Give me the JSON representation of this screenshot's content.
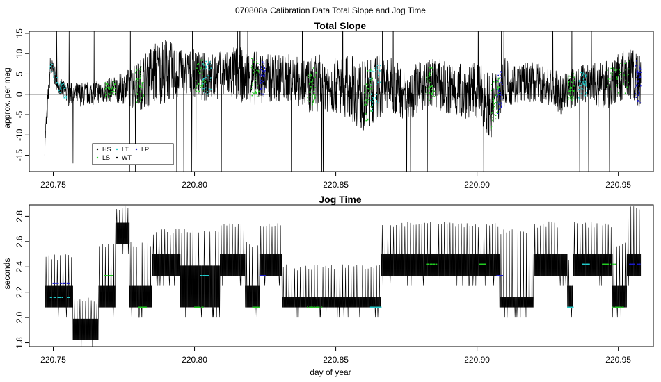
{
  "figure": {
    "suptitle": "070808a   Calibration Data Total Slope and Jog Time",
    "xlabel": "day of year"
  },
  "colors": {
    "HS": "#000000",
    "LS": "#22cc22",
    "LT": "#22cccc",
    "WT": "#000000",
    "LP": "#1a1acc",
    "trace": "#000000"
  },
  "chart_data": [
    {
      "type": "line",
      "title": "Total Slope",
      "ylabel": "approx. per meg",
      "xlim": [
        220.7415,
        220.9624
      ],
      "ylim": [
        -19,
        15.5
      ],
      "xticks": [
        "220.75",
        "220.80",
        "220.85",
        "220.90",
        "220.95"
      ],
      "xtick_values": [
        220.75,
        220.8,
        220.85,
        220.9,
        220.95
      ],
      "yticks": [
        "-15",
        "-10",
        "-5",
        "0",
        "5",
        "10",
        "15"
      ],
      "ytick_values": [
        -15,
        -10,
        -5,
        0,
        5,
        10,
        15
      ],
      "hline": 0,
      "x_range": [
        220.747,
        220.958
      ],
      "envelope": {
        "x": [
          220.747,
          220.749,
          220.752,
          220.755,
          220.76,
          220.765,
          220.77,
          220.775,
          220.78,
          220.785,
          220.79,
          220.795,
          220.8,
          220.805,
          220.81,
          220.815,
          220.82,
          220.825,
          220.83,
          220.835,
          220.84,
          220.845,
          220.85,
          220.855,
          220.86,
          220.865,
          220.87,
          220.875,
          220.88,
          220.885,
          220.89,
          220.895,
          220.9,
          220.905,
          220.91,
          220.915,
          220.92,
          220.925,
          220.93,
          220.935,
          220.94,
          220.945,
          220.95,
          220.955,
          220.958
        ],
        "mid": [
          -12,
          7,
          2,
          0,
          0,
          0.5,
          1,
          1.5,
          2,
          5,
          6,
          5,
          5,
          4,
          5,
          5,
          4,
          4,
          4,
          4,
          2,
          3,
          2,
          2,
          -1,
          2,
          2,
          0,
          2,
          3,
          1,
          1,
          1,
          -3,
          3,
          3,
          3,
          2,
          0,
          2,
          3,
          2,
          4,
          5,
          2
        ],
        "amp": [
          3,
          3,
          2,
          3,
          3,
          3,
          3,
          4,
          6,
          8,
          8,
          6,
          6,
          6,
          6,
          7,
          7,
          6,
          6,
          6,
          7,
          7,
          7,
          8,
          9,
          8,
          7,
          7,
          6,
          6,
          7,
          7,
          7,
          8,
          6,
          5,
          5,
          5,
          5,
          5,
          5,
          6,
          6,
          7,
          7
        ]
      },
      "legend": {
        "placement": "bottom-left",
        "entries": [
          "HS",
          "LS",
          "LT",
          "WT",
          "LP"
        ]
      }
    },
    {
      "type": "line",
      "title": "Jog Time",
      "ylabel": "seconds",
      "xlim": [
        220.7415,
        220.9624
      ],
      "ylim": [
        1.77,
        2.89
      ],
      "xticks": [
        "220.75",
        "220.80",
        "220.85",
        "220.90",
        "220.95"
      ],
      "xtick_values": [
        220.75,
        220.8,
        220.85,
        220.9,
        220.95
      ],
      "yticks": [
        "1.8",
        "2.0",
        "2.2",
        "2.4",
        "2.6",
        "2.8"
      ],
      "ytick_values": [
        1.8,
        2.0,
        2.2,
        2.4,
        2.6,
        2.8
      ],
      "segments": [
        {
          "x0": 220.747,
          "x1": 220.757,
          "lo": 2.08,
          "hi": 2.25,
          "spike": 2.5
        },
        {
          "x0": 220.757,
          "x1": 220.766,
          "lo": 1.82,
          "hi": 1.99,
          "spike": 2.16
        },
        {
          "x0": 220.766,
          "x1": 220.772,
          "lo": 2.08,
          "hi": 2.25,
          "spike": 2.6
        },
        {
          "x0": 220.772,
          "x1": 220.777,
          "lo": 2.58,
          "hi": 2.75,
          "spike": 2.89
        },
        {
          "x0": 220.777,
          "x1": 220.785,
          "lo": 2.08,
          "hi": 2.25,
          "spike": 2.6
        },
        {
          "x0": 220.785,
          "x1": 220.795,
          "lo": 2.33,
          "hi": 2.5,
          "spike": 2.7
        },
        {
          "x0": 220.795,
          "x1": 220.809,
          "lo": 2.08,
          "hi": 2.41,
          "spike": 2.7
        },
        {
          "x0": 220.809,
          "x1": 220.818,
          "lo": 2.33,
          "hi": 2.5,
          "spike": 2.75
        },
        {
          "x0": 220.818,
          "x1": 220.823,
          "lo": 2.08,
          "hi": 2.25,
          "spike": 2.6
        },
        {
          "x0": 220.823,
          "x1": 220.831,
          "lo": 2.33,
          "hi": 2.5,
          "spike": 2.75
        },
        {
          "x0": 220.831,
          "x1": 220.843,
          "lo": 2.08,
          "hi": 2.16,
          "spike": 2.42
        },
        {
          "x0": 220.843,
          "x1": 220.866,
          "lo": 2.08,
          "hi": 2.16,
          "spike": 2.42
        },
        {
          "x0": 220.866,
          "x1": 220.908,
          "lo": 2.33,
          "hi": 2.5,
          "spike": 2.76
        },
        {
          "x0": 220.908,
          "x1": 220.92,
          "lo": 2.08,
          "hi": 2.16,
          "spike": 2.7
        },
        {
          "x0": 220.92,
          "x1": 220.932,
          "lo": 2.33,
          "hi": 2.5,
          "spike": 2.76
        },
        {
          "x0": 220.932,
          "x1": 220.934,
          "lo": 2.08,
          "hi": 2.25,
          "spike": 2.5
        },
        {
          "x0": 220.934,
          "x1": 220.948,
          "lo": 2.33,
          "hi": 2.5,
          "spike": 2.76
        },
        {
          "x0": 220.948,
          "x1": 220.953,
          "lo": 2.08,
          "hi": 2.25,
          "spike": 2.6
        },
        {
          "x0": 220.953,
          "x1": 220.958,
          "lo": 2.33,
          "hi": 2.5,
          "spike": 2.89
        }
      ]
    }
  ]
}
